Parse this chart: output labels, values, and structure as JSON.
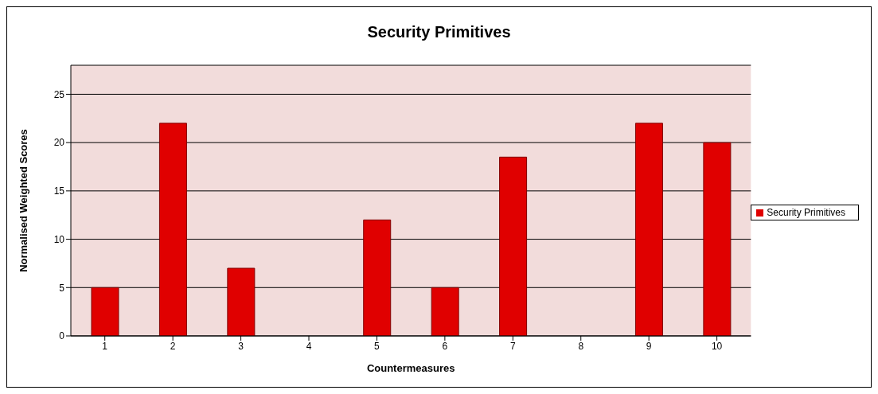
{
  "chart_data": {
    "type": "bar",
    "title": "Security Primitives",
    "xlabel": "Countermeasures",
    "ylabel": "Normalised Weighted Scores",
    "categories": [
      "1",
      "2",
      "3",
      "4",
      "5",
      "6",
      "7",
      "8",
      "9",
      "10"
    ],
    "series": [
      {
        "name": "Security Primitives",
        "color": "#e00000",
        "values": [
          5,
          22,
          7,
          0,
          12,
          5,
          18.5,
          0,
          22,
          20
        ]
      }
    ],
    "ylim": [
      0,
      28
    ],
    "yticks": [
      0,
      5,
      10,
      15,
      20,
      25
    ],
    "grid": "y",
    "legend": "right"
  }
}
